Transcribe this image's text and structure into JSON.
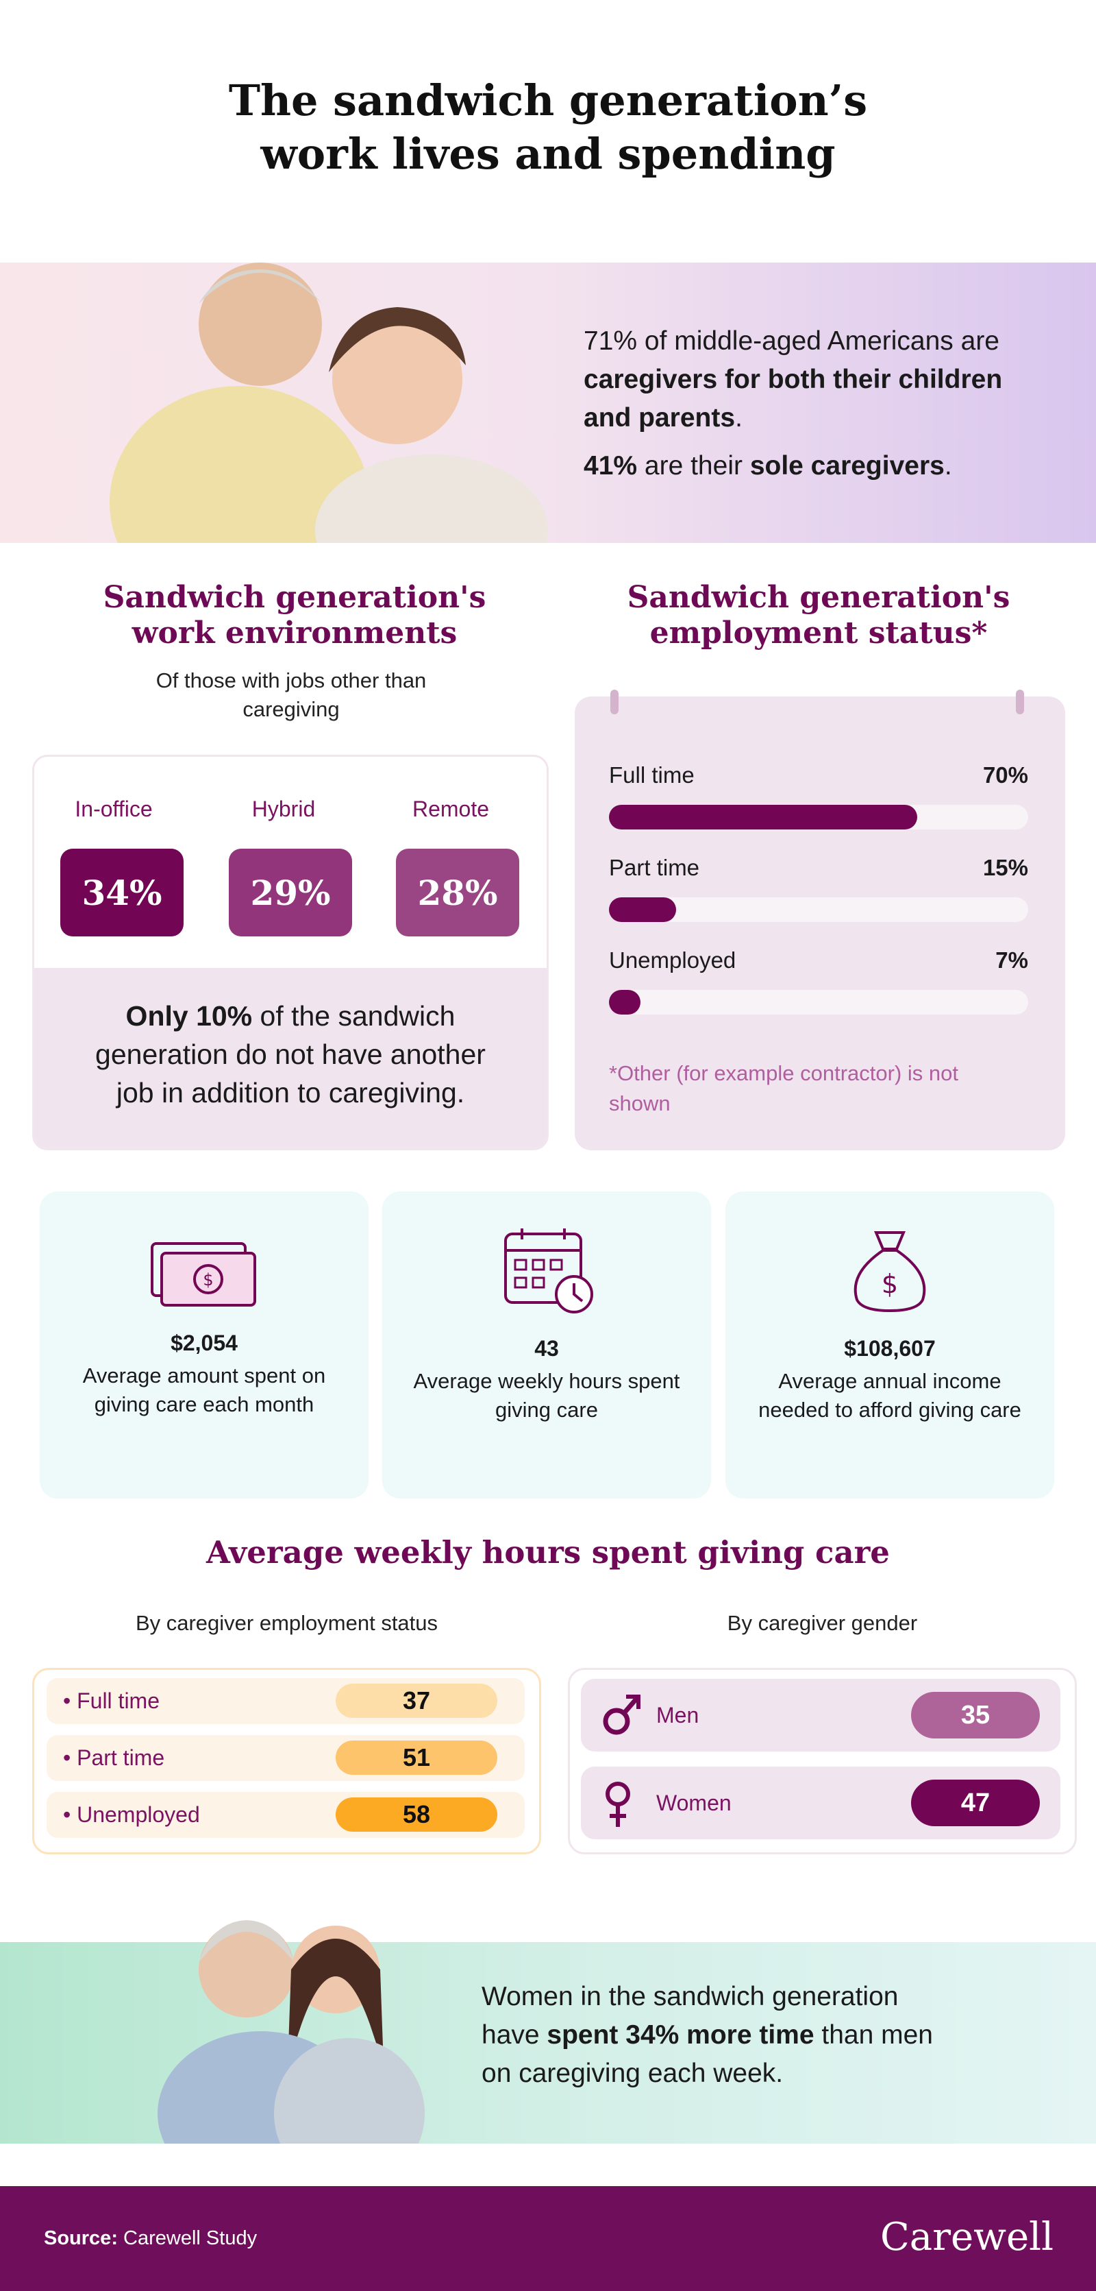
{
  "title": {
    "line1": "The sandwich generation’s",
    "line2": "work lives and spending"
  },
  "hero": {
    "p1_pre": "71% of middle-aged Americans are ",
    "p1_bold": "caregivers for both their children and parents",
    "p1_post": ".",
    "p2_bold1": "41%",
    "p2_mid": " are their ",
    "p2_bold2": "sole caregivers",
    "p2_post": "."
  },
  "work_env": {
    "title": "Sandwich generation's work environments",
    "subtitle": "Of those with jobs other than caregiving",
    "items": [
      {
        "label": "In-office",
        "value": "34%",
        "color": "#730654"
      },
      {
        "label": "Hybrid",
        "value": "29%",
        "color": "#93357b"
      },
      {
        "label": "Remote",
        "value": "28%",
        "color": "#9a4584"
      }
    ],
    "note_bold": "Only 10%",
    "note_rest": " of the sandwich generation do not have another job in addition to caregiving."
  },
  "employment": {
    "title": "Sandwich generation's employment status*",
    "items": [
      {
        "label": "Full time",
        "value": "70%",
        "fill": 0.735
      },
      {
        "label": "Part time",
        "value": "15%",
        "fill": 0.16
      },
      {
        "label": "Unemployed",
        "value": "7%",
        "fill": 0.075
      }
    ],
    "note": "*Other (for example contractor) is not shown"
  },
  "stats": [
    {
      "icon": "money-icon",
      "value": "$2,054",
      "desc": "Average amount spent on giving care each month"
    },
    {
      "icon": "calendar-clock-icon",
      "value": "43",
      "desc": "Average weekly hours spent giving care"
    },
    {
      "icon": "money-bag-icon",
      "value": "$108,607",
      "desc": "Average annual income needed to afford giving care"
    }
  ],
  "weekly": {
    "title": "Average weekly hours spent giving care",
    "by_employment": {
      "heading": "By caregiver employment status",
      "rows": [
        {
          "label": "Full time",
          "value": "37",
          "color": "#fddea8"
        },
        {
          "label": "Part time",
          "value": "51",
          "color": "#fdc46b"
        },
        {
          "label": "Unemployed",
          "value": "58",
          "color": "#fca924"
        }
      ]
    },
    "by_gender": {
      "heading": "By caregiver gender",
      "rows": [
        {
          "label": "Men",
          "value": "35",
          "icon": "male-icon",
          "color": "#ae6499"
        },
        {
          "label": "Women",
          "value": "47",
          "icon": "female-icon",
          "color": "#730654"
        }
      ]
    }
  },
  "band": {
    "pre": "Women in the sandwich generation have ",
    "bold": "spent 34% more time",
    "post": " than men on caregiving each week."
  },
  "footer": {
    "source_label": "Source:",
    "source": " Carewell Study",
    "logo": "Carewell"
  }
}
